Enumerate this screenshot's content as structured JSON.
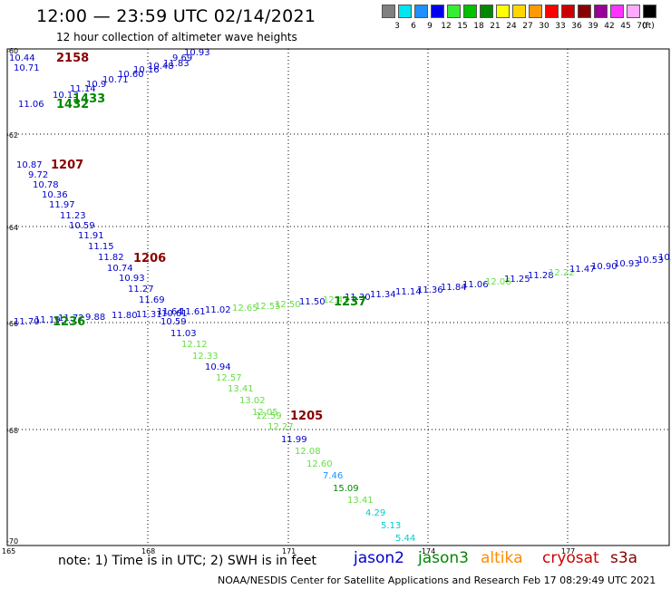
{
  "header": {
    "title": "12:00 — 23:59 UTC 02/14/2021",
    "subtitle": "12 hour collection of altimeter wave heights"
  },
  "legend": {
    "unit": "(ft)",
    "items": [
      {
        "label": "3",
        "color": "#808080"
      },
      {
        "label": "6",
        "color": "#00e5ee"
      },
      {
        "label": "9",
        "color": "#1e90ff"
      },
      {
        "label": "12",
        "color": "#0000ee"
      },
      {
        "label": "15",
        "color": "#33ee33"
      },
      {
        "label": "18",
        "color": "#00c000"
      },
      {
        "label": "21",
        "color": "#008800"
      },
      {
        "label": "24",
        "color": "#ffff00"
      },
      {
        "label": "27",
        "color": "#ffd700"
      },
      {
        "label": "30",
        "color": "#ff9900"
      },
      {
        "label": "33",
        "color": "#ff0000"
      },
      {
        "label": "36",
        "color": "#cc0000"
      },
      {
        "label": "39",
        "color": "#880000"
      },
      {
        "label": "42",
        "color": "#990099"
      },
      {
        "label": "45",
        "color": "#ff33ff"
      },
      {
        "label": "70",
        "color": "#ffaaff"
      },
      {
        "label": "",
        "color": "#000000"
      }
    ]
  },
  "axes": {
    "lat_labels": [
      "-60",
      "-62",
      "-64",
      "-66",
      "-68",
      "-70"
    ],
    "lon_labels": [
      "165",
      "168",
      "171",
      "-174",
      "177"
    ]
  },
  "colors": {
    "jason2": "#0000cc",
    "jason3": "#008800",
    "altika": "#ff8c00",
    "cryosat": "#cc0000",
    "s3a": "#880000",
    "light_green": "#66dd44",
    "cyan": "#00cccc",
    "blue_mid": "#1e90ff"
  },
  "tracks": [
    {
      "id": "track-2158",
      "time": "2158",
      "color": "#880000",
      "values": [
        "10.44",
        "10.71",
        "11.06",
        "10.13",
        "11.14",
        "10.9",
        "10.71",
        "10.60",
        "10.16",
        "10.48",
        "11.83",
        "9.69",
        "10.93"
      ]
    },
    {
      "id": "track-1433",
      "time": "1433",
      "color": "#008800",
      "values": []
    },
    {
      "id": "track-1432",
      "time": "1432",
      "color": "#008800",
      "values": []
    },
    {
      "id": "track-1207",
      "time": "1207",
      "color": "#880000",
      "values": [
        "10.87",
        "9.72",
        "10.78",
        "10.36",
        "11.97",
        "11.23",
        "10.59",
        "11.91",
        "11.15",
        "11.82",
        "10.74",
        "10.93",
        "11.27",
        "11.69",
        "11.64",
        "10.59",
        "11.03",
        "12.12",
        "12.33",
        "10.94",
        "12.57",
        "13.41",
        "13.02",
        "12.05",
        "12.59",
        "12.27",
        "11.99",
        "12.08",
        "12.60",
        "7.46",
        "15.09",
        "13.41",
        "4.29",
        "5.13",
        "5.44"
      ]
    },
    {
      "id": "track-1206",
      "time": "1206",
      "color": "#880000",
      "values": []
    },
    {
      "id": "track-1205",
      "time": "1205",
      "color": "#880000",
      "values": []
    },
    {
      "id": "track-1237",
      "time": "1237",
      "color": "#008800",
      "values": [
        "11.70",
        "11.19",
        "11.72",
        "9.88",
        "11.80",
        "11.31",
        "10.61",
        "11.61",
        "11.02",
        "12.65",
        "12.55",
        "12.50",
        "11.50",
        "12.41",
        "11.30",
        "11.34",
        "11.14",
        "11.36",
        "11.84",
        "11.06",
        "12.06",
        "11.25",
        "11.28",
        "12.22",
        "11.47",
        "10.90",
        "10.93",
        "10.53",
        "10."
      ]
    },
    {
      "id": "track-1236",
      "time": "1236",
      "color": "#008800",
      "values": []
    }
  ],
  "legend_sats": {
    "jason2": "jason2",
    "jason3": "jason3",
    "altika": "altika",
    "cryosat": "cryosat",
    "s3a": "s3a"
  },
  "footer": {
    "note": "note:  1) Time is in UTC;  2) SWH is in feet",
    "credit": "NOAA/NESDIS Center for Satellite Applications and Research    Feb 17 08:29:49 UTC 2021"
  }
}
